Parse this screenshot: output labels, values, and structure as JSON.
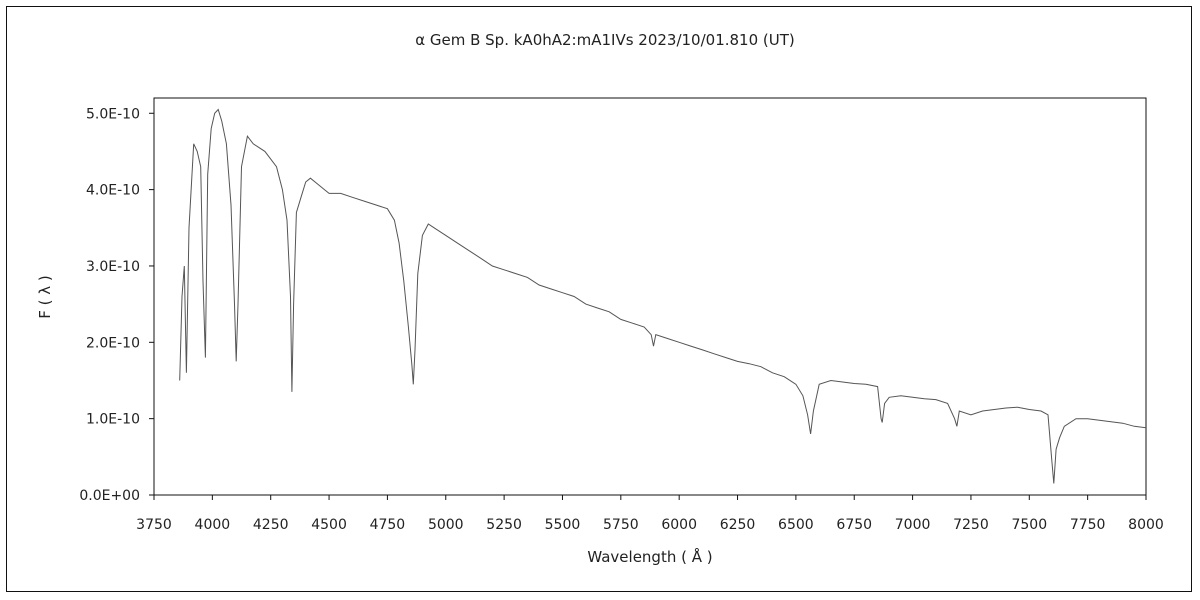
{
  "chart_data": {
    "type": "line",
    "title": "α  Gem B    Sp. kA0hA2:mA1IVs    2023/10/01.810 (UT)",
    "xlabel": "Wavelength ( Å )",
    "ylabel": "F ( λ )",
    "xlim": [
      3750,
      8000
    ],
    "ylim": [
      0,
      5.2e-10
    ],
    "x_ticks": [
      3750,
      4000,
      4250,
      4500,
      4750,
      5000,
      5250,
      5500,
      5750,
      6000,
      6250,
      6500,
      6750,
      7000,
      7250,
      7500,
      7750,
      8000
    ],
    "x_tick_labels": [
      "3750",
      "4000",
      "4250",
      "4500",
      "4750",
      "5000",
      "5250",
      "5500",
      "5750",
      "6000",
      "6250",
      "6500",
      "6750",
      "7000",
      "7250",
      "7500",
      "7750",
      "8000"
    ],
    "y_ticks": [
      0,
      1e-10,
      2e-10,
      3e-10,
      4e-10,
      5e-10
    ],
    "y_tick_labels": [
      "0.0E+00",
      "1.0E-10",
      "2.0E-10",
      "3.0E-10",
      "4.0E-10",
      "5.0E-10"
    ],
    "grid": false,
    "line_color": "#555555",
    "series": [
      {
        "x": [
          3860,
          3870,
          3880,
          3889,
          3900,
          3920,
          3935,
          3950,
          3960,
          3970,
          3980,
          3995,
          4010,
          4025,
          4040,
          4060,
          4080,
          4095,
          4102,
          4110,
          4125,
          4150,
          4175,
          4200,
          4225,
          4250,
          4275,
          4300,
          4320,
          4335,
          4341,
          4348,
          4360,
          4380,
          4400,
          4420,
          4440,
          4460,
          4480,
          4500,
          4550,
          4600,
          4650,
          4700,
          4750,
          4780,
          4800,
          4820,
          4840,
          4855,
          4861,
          4868,
          4880,
          4900,
          4925,
          4950,
          5000,
          5050,
          5100,
          5150,
          5200,
          5250,
          5300,
          5350,
          5400,
          5450,
          5500,
          5550,
          5600,
          5650,
          5700,
          5750,
          5800,
          5850,
          5880,
          5890,
          5900,
          5950,
          6000,
          6050,
          6100,
          6150,
          6200,
          6250,
          6300,
          6350,
          6400,
          6450,
          6500,
          6530,
          6550,
          6563,
          6575,
          6600,
          6650,
          6700,
          6750,
          6800,
          6850,
          6865,
          6870,
          6880,
          6900,
          6950,
          7000,
          7050,
          7100,
          7150,
          7180,
          7190,
          7200,
          7250,
          7300,
          7350,
          7400,
          7450,
          7500,
          7550,
          7580,
          7595,
          7605,
          7615,
          7630,
          7650,
          7700,
          7750,
          7800,
          7850,
          7900,
          7950,
          8000
        ],
        "values": [
          1.5e-10,
          2.6e-10,
          3e-10,
          1.6e-10,
          3.5e-10,
          4.6e-10,
          4.5e-10,
          4.3e-10,
          2.8e-10,
          1.8e-10,
          4.2e-10,
          4.8e-10,
          5e-10,
          5.05e-10,
          4.9e-10,
          4.6e-10,
          3.8e-10,
          2.5e-10,
          1.75e-10,
          2.5e-10,
          4.3e-10,
          4.7e-10,
          4.6e-10,
          4.55e-10,
          4.5e-10,
          4.4e-10,
          4.3e-10,
          4e-10,
          3.6e-10,
          2.6e-10,
          1.35e-10,
          2.5e-10,
          3.7e-10,
          3.9e-10,
          4.1e-10,
          4.15e-10,
          4.1e-10,
          4.05e-10,
          4e-10,
          3.95e-10,
          3.95e-10,
          3.9e-10,
          3.85e-10,
          3.8e-10,
          3.75e-10,
          3.6e-10,
          3.3e-10,
          2.8e-10,
          2.2e-10,
          1.7e-10,
          1.45e-10,
          1.9e-10,
          2.9e-10,
          3.4e-10,
          3.55e-10,
          3.5e-10,
          3.4e-10,
          3.3e-10,
          3.2e-10,
          3.1e-10,
          3e-10,
          2.95e-10,
          2.9e-10,
          2.85e-10,
          2.75e-10,
          2.7e-10,
          2.65e-10,
          2.6e-10,
          2.5e-10,
          2.45e-10,
          2.4e-10,
          2.3e-10,
          2.25e-10,
          2.2e-10,
          2.1e-10,
          1.95e-10,
          2.1e-10,
          2.05e-10,
          2e-10,
          1.95e-10,
          1.9e-10,
          1.85e-10,
          1.8e-10,
          1.75e-10,
          1.72e-10,
          1.68e-10,
          1.6e-10,
          1.55e-10,
          1.45e-10,
          1.3e-10,
          1.05e-10,
          8e-11,
          1.1e-10,
          1.45e-10,
          1.5e-10,
          1.48e-10,
          1.46e-10,
          1.45e-10,
          1.42e-10,
          1e-10,
          9.5e-11,
          1.2e-10,
          1.28e-10,
          1.3e-10,
          1.28e-10,
          1.26e-10,
          1.25e-10,
          1.2e-10,
          1e-10,
          9e-11,
          1.1e-10,
          1.05e-10,
          1.1e-10,
          1.12e-10,
          1.14e-10,
          1.15e-10,
          1.12e-10,
          1.1e-10,
          1.05e-10,
          5e-11,
          1.5e-11,
          6e-11,
          7.5e-11,
          9e-11,
          1e-10,
          1e-10,
          9.8e-11,
          9.6e-11,
          9.4e-11,
          9e-11,
          8.8e-11
        ]
      }
    ]
  }
}
